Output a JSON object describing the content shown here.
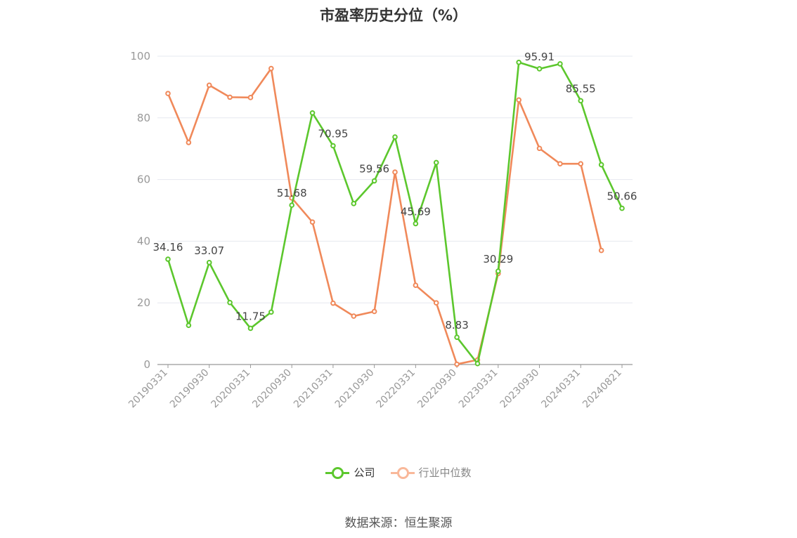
{
  "chart_data": {
    "type": "line",
    "title": "市盈率历史分位（%）",
    "ylim": [
      0,
      100
    ],
    "yticks": [
      0,
      20,
      40,
      60,
      80,
      100
    ],
    "grid": true,
    "legend_position": "bottom",
    "x": [
      "20190331",
      "20190630",
      "20190930",
      "20191231",
      "20200331",
      "20200630",
      "20200930",
      "20201231",
      "20210331",
      "20210630",
      "20210930",
      "20211231",
      "20220331",
      "20220630",
      "20220930",
      "20221231",
      "20230331",
      "20230630",
      "20230930",
      "20231231",
      "20240331",
      "20240630",
      "20240821"
    ],
    "xtick_labels": [
      "20190331",
      "20190930",
      "20200331",
      "20200930",
      "20210331",
      "20210930",
      "20220331",
      "20220930",
      "20230331",
      "20230930",
      "20240331",
      "20240821"
    ],
    "series": [
      {
        "name": "公司",
        "color": "#5cc72d",
        "values": [
          34.16,
          12.7,
          33.07,
          20.1,
          11.75,
          17.0,
          51.68,
          81.6,
          70.95,
          52.2,
          59.56,
          73.8,
          45.69,
          65.5,
          8.83,
          0.3,
          30.29,
          98.0,
          95.91,
          97.5,
          85.55,
          64.8,
          50.66
        ]
      },
      {
        "name": "行业中位数",
        "color": "#f0895a",
        "values": [
          87.9,
          72.0,
          90.6,
          86.7,
          86.6,
          96.0,
          54.0,
          46.2,
          19.9,
          15.7,
          17.2,
          62.4,
          25.7,
          20.0,
          0.1,
          1.5,
          29.5,
          85.8,
          70.1,
          65.1,
          65.1,
          37.0,
          null
        ]
      }
    ],
    "data_labels": [
      {
        "series": 0,
        "index": 0,
        "text": "34.16"
      },
      {
        "series": 0,
        "index": 2,
        "text": "33.07"
      },
      {
        "series": 0,
        "index": 4,
        "text": "11.75"
      },
      {
        "series": 0,
        "index": 6,
        "text": "51.68"
      },
      {
        "series": 0,
        "index": 8,
        "text": "70.95"
      },
      {
        "series": 0,
        "index": 10,
        "text": "59.56"
      },
      {
        "series": 0,
        "index": 12,
        "text": "45.69"
      },
      {
        "series": 0,
        "index": 14,
        "text": "8.83"
      },
      {
        "series": 0,
        "index": 16,
        "text": "30.29"
      },
      {
        "series": 0,
        "index": 18,
        "text": "95.91"
      },
      {
        "series": 0,
        "index": 20,
        "text": "85.55"
      },
      {
        "series": 0,
        "index": 22,
        "text": "50.66"
      }
    ]
  },
  "legend": [
    {
      "label": "公司",
      "color": "#5cc72d",
      "text_color": "#333333"
    },
    {
      "label": "行业中位数",
      "color": "#f9b89a",
      "text_color": "#888888"
    }
  ],
  "source": "数据来源：恒生聚源"
}
